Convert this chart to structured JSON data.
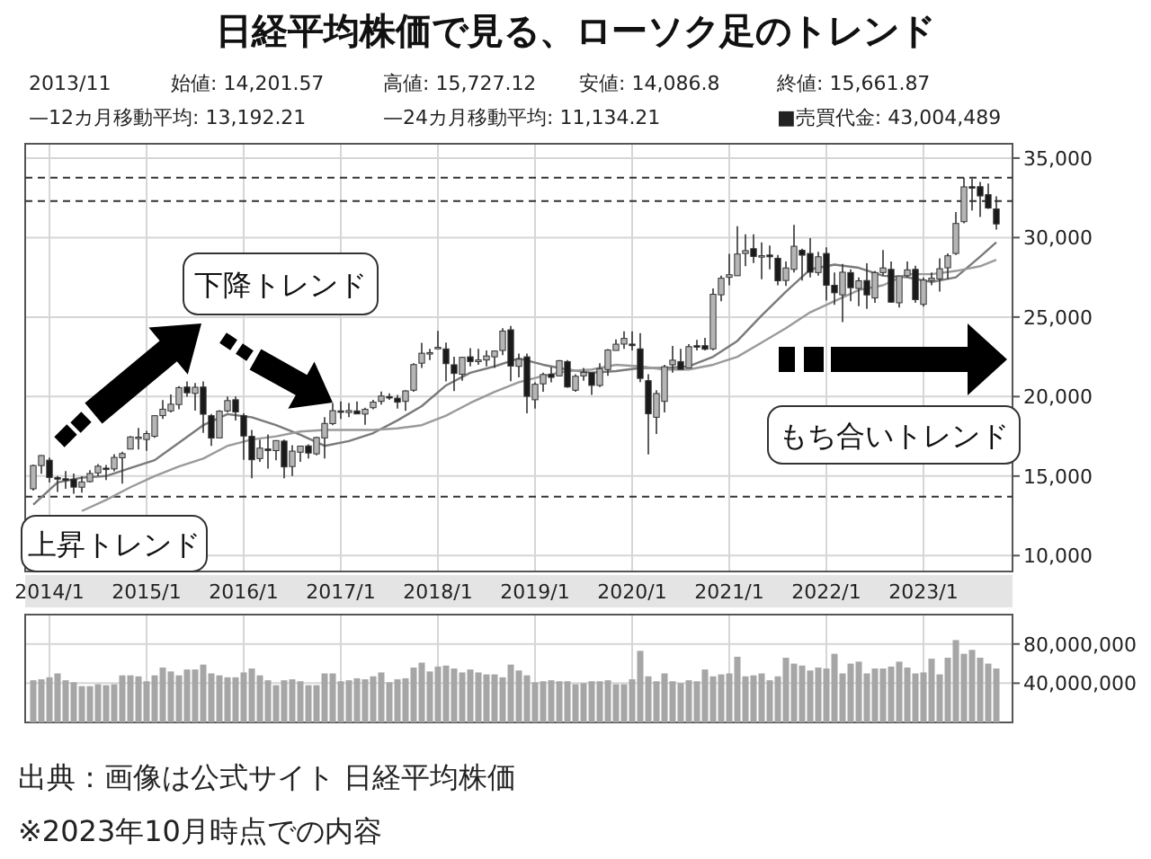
{
  "chart_data": [
    {
      "type": "candlestick",
      "title": "日経平均株価で見る、ローソク足のトレンド",
      "annotations": [
        "2013/11",
        "始値: 14,201.57",
        "高値: 15,727.12",
        "安値: 14,086.8",
        "終値: 15,661.87",
        "—12カ月移動平均: 13,192.21",
        "—24カ月移動平均: 11,134.21",
        "■売買代金: 43,004,489",
        "下降トレンド",
        "上昇トレンド",
        "もち合いトレンド"
      ],
      "x": [
        "2013-11",
        "2013-12",
        "2014-01",
        "2014-02",
        "2014-03",
        "2014-04",
        "2014-05",
        "2014-06",
        "2014-07",
        "2014-08",
        "2014-09",
        "2014-10",
        "2014-11",
        "2014-12",
        "2015-01",
        "2015-02",
        "2015-03",
        "2015-04",
        "2015-05",
        "2015-06",
        "2015-07",
        "2015-08",
        "2015-09",
        "2015-10",
        "2015-11",
        "2015-12",
        "2016-01",
        "2016-02",
        "2016-03",
        "2016-04",
        "2016-05",
        "2016-06",
        "2016-07",
        "2016-08",
        "2016-09",
        "2016-10",
        "2016-11",
        "2016-12",
        "2017-01",
        "2017-02",
        "2017-03",
        "2017-04",
        "2017-05",
        "2017-06",
        "2017-07",
        "2017-08",
        "2017-09",
        "2017-10",
        "2017-11",
        "2017-12",
        "2018-01",
        "2018-02",
        "2018-03",
        "2018-04",
        "2018-05",
        "2018-06",
        "2018-07",
        "2018-08",
        "2018-09",
        "2018-10",
        "2018-11",
        "2018-12",
        "2019-01",
        "2019-02",
        "2019-03",
        "2019-04",
        "2019-05",
        "2019-06",
        "2019-07",
        "2019-08",
        "2019-09",
        "2019-10",
        "2019-11",
        "2019-12",
        "2020-01",
        "2020-02",
        "2020-03",
        "2020-04",
        "2020-05",
        "2020-06",
        "2020-07",
        "2020-08",
        "2020-09",
        "2020-10",
        "2020-11",
        "2020-12",
        "2021-01",
        "2021-02",
        "2021-03",
        "2021-04",
        "2021-05",
        "2021-06",
        "2021-07",
        "2021-08",
        "2021-09",
        "2021-10",
        "2021-11",
        "2021-12",
        "2022-01",
        "2022-02",
        "2022-03",
        "2022-04",
        "2022-05",
        "2022-06",
        "2022-07",
        "2022-08",
        "2022-09",
        "2022-10",
        "2022-11",
        "2022-12",
        "2023-01",
        "2023-02",
        "2023-03",
        "2023-04",
        "2023-05",
        "2023-06",
        "2023-07",
        "2023-08",
        "2023-09",
        "2023-10"
      ],
      "ohlc": [
        [
          14201.57,
          15727.12,
          14086.8,
          15661.87
        ],
        [
          15660,
          16320,
          15150,
          16291
        ],
        [
          16000,
          16164,
          14600,
          14914
        ],
        [
          14900,
          15000,
          13995,
          14841
        ],
        [
          14830,
          15312,
          14203,
          14827
        ],
        [
          14800,
          15164,
          13885,
          14304
        ],
        [
          14300,
          14993,
          13964,
          14632
        ],
        [
          14650,
          15376,
          14600,
          15162
        ],
        [
          15200,
          15759,
          15000,
          15621
        ],
        [
          15500,
          15700,
          14753,
          15425
        ],
        [
          15450,
          16375,
          15300,
          16173
        ],
        [
          16150,
          16533,
          14529,
          16414
        ],
        [
          16700,
          17520,
          16700,
          17459
        ],
        [
          17400,
          18030,
          16672,
          17450
        ],
        [
          17300,
          17850,
          16592,
          17674
        ],
        [
          17500,
          18800,
          17400,
          18797
        ],
        [
          18800,
          19778,
          18600,
          19206
        ],
        [
          19100,
          20133,
          19000,
          19520
        ],
        [
          19500,
          20655,
          19200,
          20563
        ],
        [
          20600,
          20952,
          19990,
          20235
        ],
        [
          20200,
          20850,
          19115,
          20585
        ],
        [
          20600,
          20946,
          17714,
          18890
        ],
        [
          18800,
          18900,
          16901,
          17388
        ],
        [
          17400,
          19150,
          17400,
          19083
        ],
        [
          19100,
          20012,
          19000,
          19747
        ],
        [
          19800,
          20000,
          18500,
          19033
        ],
        [
          18800,
          18951,
          16017,
          17518
        ],
        [
          17500,
          17905,
          14865,
          16026
        ],
        [
          16100,
          17291,
          15900,
          16758
        ],
        [
          16700,
          17613,
          15471,
          16666
        ],
        [
          16600,
          17251,
          16000,
          17234
        ],
        [
          17200,
          17300,
          14864,
          15575
        ],
        [
          15600,
          16938,
          15000,
          16569
        ],
        [
          16500,
          16900,
          15900,
          16887
        ],
        [
          16900,
          17000,
          16100,
          16449
        ],
        [
          16400,
          17480,
          16300,
          17425
        ],
        [
          17400,
          18700,
          16111,
          18308
        ],
        [
          18300,
          19592,
          18200,
          19114
        ],
        [
          19100,
          19700,
          18600,
          19041
        ],
        [
          19000,
          19600,
          18700,
          19119
        ],
        [
          19100,
          19700,
          18900,
          18909
        ],
        [
          18900,
          19300,
          18224,
          19197
        ],
        [
          19300,
          19800,
          19200,
          19651
        ],
        [
          19700,
          20318,
          19500,
          20033
        ],
        [
          20000,
          20200,
          19800,
          19925
        ],
        [
          19900,
          20100,
          19240,
          19646
        ],
        [
          19700,
          20400,
          19100,
          20356
        ],
        [
          20400,
          22100,
          20300,
          22012
        ],
        [
          22100,
          23382,
          21800,
          22725
        ],
        [
          22700,
          23000,
          22300,
          22765
        ],
        [
          23000,
          24129,
          23000,
          23098
        ],
        [
          23000,
          23400,
          20951,
          22068
        ],
        [
          22000,
          22500,
          20347,
          21454
        ],
        [
          21400,
          22500,
          21000,
          22468
        ],
        [
          22500,
          23050,
          21900,
          22202
        ],
        [
          22200,
          23000,
          22000,
          22305
        ],
        [
          22300,
          22900,
          21900,
          22554
        ],
        [
          22500,
          22900,
          21800,
          22865
        ],
        [
          22900,
          24300,
          22600,
          24120
        ],
        [
          24200,
          24448,
          20971,
          21920
        ],
        [
          21900,
          22700,
          21200,
          22351
        ],
        [
          22500,
          22700,
          18948,
          20015
        ],
        [
          19800,
          20900,
          19241,
          20773
        ],
        [
          20800,
          21500,
          20300,
          21385
        ],
        [
          21400,
          21860,
          20900,
          21206
        ],
        [
          21300,
          22300,
          21300,
          22259
        ],
        [
          22200,
          22300,
          20550,
          20601
        ],
        [
          20400,
          21400,
          20300,
          21276
        ],
        [
          21300,
          21800,
          21000,
          21521
        ],
        [
          21500,
          21500,
          20110,
          20704
        ],
        [
          20700,
          22100,
          20600,
          21756
        ],
        [
          21700,
          22990,
          21300,
          22927
        ],
        [
          22900,
          23600,
          22900,
          23294
        ],
        [
          23300,
          24100,
          23000,
          23656
        ],
        [
          23300,
          24100,
          22900,
          23205
        ],
        [
          23000,
          23995,
          20916,
          21143
        ],
        [
          21000,
          21400,
          16358,
          18917
        ],
        [
          18700,
          20400,
          17646,
          20193
        ],
        [
          19700,
          22000,
          19000,
          21878
        ],
        [
          22000,
          23178,
          21500,
          22288
        ],
        [
          22200,
          23000,
          21710,
          21710
        ],
        [
          21800,
          23300,
          21800,
          23140
        ],
        [
          23200,
          23560,
          22900,
          23185
        ],
        [
          23200,
          23700,
          22900,
          22977
        ],
        [
          23000,
          26800,
          22900,
          26433
        ],
        [
          26400,
          27602,
          26000,
          27444
        ],
        [
          27500,
          28979,
          27000,
          27663
        ],
        [
          27600,
          30714,
          27600,
          28966
        ],
        [
          29000,
          30200,
          28200,
          29179
        ],
        [
          29300,
          30200,
          28400,
          28812
        ],
        [
          28800,
          29700,
          27385,
          28860
        ],
        [
          28900,
          29500,
          28000,
          28791
        ],
        [
          28700,
          28900,
          27000,
          27283
        ],
        [
          27300,
          28500,
          26954,
          28089
        ],
        [
          28000,
          30795,
          27800,
          29452
        ],
        [
          29200,
          29300,
          27300,
          28892
        ],
        [
          29000,
          29960,
          27500,
          27821
        ],
        [
          27800,
          29100,
          27600,
          28791
        ],
        [
          29000,
          29388,
          26044,
          27001
        ],
        [
          27000,
          27800,
          25770,
          26526
        ],
        [
          26400,
          28338,
          24681,
          27821
        ],
        [
          27800,
          28000,
          26000,
          26847
        ],
        [
          26800,
          27500,
          25688,
          27279
        ],
        [
          27300,
          28389,
          25520,
          26393
        ],
        [
          26200,
          27900,
          25900,
          27801
        ],
        [
          27800,
          29222,
          27600,
          28091
        ],
        [
          28000,
          28500,
          25900,
          25937
        ],
        [
          25900,
          27600,
          25600,
          27587
        ],
        [
          27600,
          28500,
          27500,
          27968
        ],
        [
          28000,
          28226,
          25900,
          26094
        ],
        [
          25800,
          27500,
          25661,
          27327
        ],
        [
          27300,
          27800,
          27000,
          27445
        ],
        [
          27400,
          28700,
          26600,
          28041
        ],
        [
          28100,
          29000,
          27400,
          28856
        ],
        [
          29000,
          31600,
          28900,
          30887
        ],
        [
          31000,
          33772,
          30900,
          33189
        ],
        [
          33200,
          33700,
          31700,
          33172
        ],
        [
          33200,
          33500,
          31300,
          32619
        ],
        [
          32700,
          33400,
          31800,
          31857
        ],
        [
          31800,
          32600,
          30500,
          30858
        ]
      ],
      "colors": [
        "#b5b5b5",
        "#b5b5b5",
        "#1a1a1a",
        "#1a1a1a",
        "#1a1a1a",
        "#1a1a1a",
        "#b5b5b5",
        "#b5b5b5",
        "#b5b5b5",
        "#1a1a1a",
        "#b5b5b5",
        "#b5b5b5",
        "#b5b5b5",
        "#b5b5b5",
        "#b5b5b5",
        "#b5b5b5",
        "#b5b5b5",
        "#b5b5b5",
        "#b5b5b5",
        "#1a1a1a",
        "#b5b5b5",
        "#1a1a1a",
        "#1a1a1a",
        "#b5b5b5",
        "#b5b5b5",
        "#1a1a1a",
        "#1a1a1a",
        "#1a1a1a",
        "#b5b5b5",
        "#1a1a1a",
        "#b5b5b5",
        "#1a1a1a",
        "#b5b5b5",
        "#b5b5b5",
        "#1a1a1a",
        "#b5b5b5",
        "#b5b5b5",
        "#b5b5b5",
        "#1a1a1a",
        "#b5b5b5",
        "#1a1a1a",
        "#b5b5b5",
        "#b5b5b5",
        "#b5b5b5",
        "#1a1a1a",
        "#1a1a1a",
        "#b5b5b5",
        "#b5b5b5",
        "#b5b5b5",
        "#b5b5b5",
        "#b5b5b5",
        "#1a1a1a",
        "#1a1a1a",
        "#b5b5b5",
        "#1a1a1a",
        "#b5b5b5",
        "#b5b5b5",
        "#b5b5b5",
        "#b5b5b5",
        "#1a1a1a",
        "#b5b5b5",
        "#1a1a1a",
        "#b5b5b5",
        "#b5b5b5",
        "#1a1a1a",
        "#b5b5b5",
        "#1a1a1a",
        "#b5b5b5",
        "#b5b5b5",
        "#1a1a1a",
        "#b5b5b5",
        "#b5b5b5",
        "#b5b5b5",
        "#b5b5b5",
        "#1a1a1a",
        "#1a1a1a",
        "#1a1a1a",
        "#b5b5b5",
        "#b5b5b5",
        "#b5b5b5",
        "#1a1a1a",
        "#b5b5b5",
        "#1a1a1a",
        "#1a1a1a",
        "#b5b5b5",
        "#b5b5b5",
        "#b5b5b5",
        "#b5b5b5",
        "#b5b5b5",
        "#1a1a1a",
        "#b5b5b5",
        "#1a1a1a",
        "#1a1a1a",
        "#b5b5b5",
        "#b5b5b5",
        "#1a1a1a",
        "#1a1a1a",
        "#b5b5b5",
        "#1a1a1a",
        "#1a1a1a",
        "#b5b5b5",
        "#1a1a1a",
        "#b5b5b5",
        "#1a1a1a",
        "#b5b5b5",
        "#b5b5b5",
        "#1a1a1a",
        "#b5b5b5",
        "#b5b5b5",
        "#1a1a1a",
        "#b5b5b5",
        "#b5b5b5",
        "#b5b5b5",
        "#b5b5b5",
        "#b5b5b5",
        "#b5b5b5",
        "#1a1a1a",
        "#1a1a1a",
        "#1a1a1a",
        "#1a1a1a"
      ],
      "series": [
        {
          "type": "line",
          "color": "#7a7a7a",
          "x": [
            "2013-11",
            "2014-02",
            "2014-05",
            "2014-08",
            "2014-11",
            "2015-02",
            "2015-05",
            "2015-08",
            "2015-11",
            "2016-02",
            "2016-05",
            "2016-08",
            "2016-11",
            "2017-02",
            "2017-05",
            "2017-08",
            "2017-11",
            "2018-02",
            "2018-05",
            "2018-08",
            "2018-11",
            "2019-02",
            "2019-05",
            "2019-08",
            "2019-11",
            "2020-02",
            "2020-05",
            "2020-08",
            "2020-11",
            "2021-02",
            "2021-05",
            "2021-08",
            "2021-11",
            "2022-02",
            "2022-05",
            "2022-08",
            "2022-11",
            "2023-02",
            "2023-05",
            "2023-08",
            "2023-10"
          ],
          "values": [
            13200,
            14600,
            14900,
            15000,
            15500,
            16000,
            17100,
            18200,
            18900,
            18700,
            18200,
            17600,
            16900,
            17200,
            17700,
            18500,
            19400,
            20700,
            21500,
            21900,
            22400,
            22000,
            21700,
            21500,
            21600,
            21800,
            21800,
            21900,
            22500,
            23500,
            25100,
            26600,
            28000,
            28300,
            28100,
            27600,
            27500,
            27200,
            27500,
            28800,
            29700
          ]
        },
        {
          "type": "line",
          "color": "#9a9a9a",
          "x": [
            "2014-05",
            "2014-08",
            "2014-11",
            "2015-02",
            "2015-05",
            "2015-08",
            "2015-11",
            "2016-02",
            "2016-05",
            "2016-08",
            "2016-11",
            "2017-02",
            "2017-05",
            "2017-08",
            "2017-11",
            "2018-02",
            "2018-05",
            "2018-08",
            "2018-11",
            "2019-02",
            "2019-05",
            "2019-08",
            "2019-11",
            "2020-02",
            "2020-05",
            "2020-08",
            "2020-11",
            "2021-02",
            "2021-05",
            "2021-08",
            "2021-11",
            "2022-02",
            "2022-05",
            "2022-08",
            "2022-11",
            "2023-02",
            "2023-05",
            "2023-08",
            "2023-10"
          ],
          "values": [
            12800,
            13500,
            14300,
            15000,
            15600,
            16100,
            16900,
            17300,
            17500,
            17800,
            17900,
            17900,
            17900,
            18000,
            18200,
            18800,
            19600,
            20300,
            20900,
            21300,
            21600,
            21700,
            22000,
            21900,
            21700,
            21700,
            22000,
            22500,
            23400,
            24300,
            25300,
            26000,
            26700,
            27000,
            27700,
            27700,
            27900,
            28200,
            28600
          ]
        }
      ],
      "xlim": [
        "2013-10",
        "2023-12"
      ],
      "ylim": [
        9000,
        35900
      ],
      "xticks": [
        {
          "value": "2014-01",
          "label": "2014/1"
        },
        {
          "value": "2015-01",
          "label": "2015/1"
        },
        {
          "value": "2016-01",
          "label": "2016/1"
        },
        {
          "value": "2017-01",
          "label": "2017/1"
        },
        {
          "value": "2018-01",
          "label": "2018/1"
        },
        {
          "value": "2019-01",
          "label": "2019/1"
        },
        {
          "value": "2020-01",
          "label": "2020/1"
        },
        {
          "value": "2021-01",
          "label": "2021/1"
        },
        {
          "value": "2022-01",
          "label": "2022/1"
        },
        {
          "value": "2023-01",
          "label": "2023/1"
        }
      ],
      "yticks": [
        {
          "value": 10000,
          "label": "10,000"
        },
        {
          "value": 15000,
          "label": "15,000"
        },
        {
          "value": 20000,
          "label": "20,000"
        },
        {
          "value": 25000,
          "label": "25,000"
        },
        {
          "value": 30000,
          "label": "30,000"
        },
        {
          "value": 35000,
          "label": "35,000"
        }
      ],
      "ref_lines": [
        {
          "axis": "y",
          "value": 33772,
          "color": "#333333",
          "line_style": "dashed"
        },
        {
          "axis": "y",
          "value": 32300,
          "color": "#333333",
          "line_style": "dashed"
        },
        {
          "axis": "y",
          "value": 13700,
          "color": "#333333",
          "line_style": "dashed"
        }
      ],
      "grid": true
    },
    {
      "type": "bar",
      "color": "#a6a6a6",
      "annotations": [
        "出典：画像は公式サイト 日経平均株価",
        "※2023年10月時点での内容"
      ],
      "x": [
        "2013-11",
        "2013-12",
        "2014-01",
        "2014-02",
        "2014-03",
        "2014-04",
        "2014-05",
        "2014-06",
        "2014-07",
        "2014-08",
        "2014-09",
        "2014-10",
        "2014-11",
        "2014-12",
        "2015-01",
        "2015-02",
        "2015-03",
        "2015-04",
        "2015-05",
        "2015-06",
        "2015-07",
        "2015-08",
        "2015-09",
        "2015-10",
        "2015-11",
        "2015-12",
        "2016-01",
        "2016-02",
        "2016-03",
        "2016-04",
        "2016-05",
        "2016-06",
        "2016-07",
        "2016-08",
        "2016-09",
        "2016-10",
        "2016-11",
        "2016-12",
        "2017-01",
        "2017-02",
        "2017-03",
        "2017-04",
        "2017-05",
        "2017-06",
        "2017-07",
        "2017-08",
        "2017-09",
        "2017-10",
        "2017-11",
        "2017-12",
        "2018-01",
        "2018-02",
        "2018-03",
        "2018-04",
        "2018-05",
        "2018-06",
        "2018-07",
        "2018-08",
        "2018-09",
        "2018-10",
        "2018-11",
        "2018-12",
        "2019-01",
        "2019-02",
        "2019-03",
        "2019-04",
        "2019-05",
        "2019-06",
        "2019-07",
        "2019-08",
        "2019-09",
        "2019-10",
        "2019-11",
        "2019-12",
        "2020-01",
        "2020-02",
        "2020-03",
        "2020-04",
        "2020-05",
        "2020-06",
        "2020-07",
        "2020-08",
        "2020-09",
        "2020-10",
        "2020-11",
        "2020-12",
        "2021-01",
        "2021-02",
        "2021-03",
        "2021-04",
        "2021-05",
        "2021-06",
        "2021-07",
        "2021-08",
        "2021-09",
        "2021-10",
        "2021-11",
        "2021-12",
        "2022-01",
        "2022-02",
        "2022-03",
        "2022-04",
        "2022-05",
        "2022-06",
        "2022-07",
        "2022-08",
        "2022-09",
        "2022-10",
        "2022-11",
        "2022-12",
        "2023-01",
        "2023-02",
        "2023-03",
        "2023-04",
        "2023-05",
        "2023-06",
        "2023-07",
        "2023-08",
        "2023-09",
        "2023-10"
      ],
      "values": [
        43000000,
        44000000,
        46000000,
        50000000,
        43000000,
        41000000,
        37000000,
        37000000,
        39000000,
        38000000,
        39000000,
        48000000,
        48000000,
        47000000,
        42000000,
        48000000,
        56000000,
        52000000,
        48000000,
        54000000,
        54000000,
        59000000,
        50000000,
        48000000,
        46000000,
        46000000,
        51000000,
        55000000,
        48000000,
        43000000,
        38000000,
        43000000,
        44000000,
        42000000,
        38000000,
        38000000,
        50000000,
        50000000,
        42000000,
        43000000,
        45000000,
        44000000,
        47000000,
        51000000,
        41000000,
        44000000,
        45000000,
        56000000,
        61000000,
        52000000,
        57000000,
        58000000,
        55000000,
        51000000,
        54000000,
        51000000,
        49000000,
        49000000,
        46000000,
        59000000,
        53000000,
        48000000,
        41000000,
        42000000,
        43000000,
        42000000,
        42000000,
        39000000,
        40000000,
        42000000,
        42000000,
        43000000,
        39000000,
        39000000,
        44000000,
        73000000,
        47000000,
        42000000,
        50000000,
        42000000,
        40000000,
        43000000,
        42000000,
        54000000,
        47000000,
        49000000,
        50000000,
        67000000,
        47000000,
        48000000,
        50000000,
        43000000,
        47000000,
        66000000,
        60000000,
        58000000,
        53000000,
        56000000,
        55000000,
        70000000,
        50000000,
        60000000,
        62000000,
        50000000,
        55000000,
        55000000,
        57000000,
        62000000,
        56000000,
        50000000,
        51000000,
        65000000,
        49000000,
        66000000,
        84000000,
        70000000,
        74000000,
        66000000,
        60000000,
        55000000
      ],
      "xlim": [
        "2013-10",
        "2023-12"
      ],
      "ylim": [
        0,
        110000000
      ],
      "xticks": [
        {
          "value": "2014-01",
          "label": null
        },
        {
          "value": "2015-01",
          "label": null
        },
        {
          "value": "2016-01",
          "label": null
        },
        {
          "value": "2017-01",
          "label": null
        },
        {
          "value": "2018-01",
          "label": null
        },
        {
          "value": "2019-01",
          "label": null
        },
        {
          "value": "2020-01",
          "label": null
        },
        {
          "value": "2021-01",
          "label": null
        },
        {
          "value": "2022-01",
          "label": null
        },
        {
          "value": "2023-01",
          "label": null
        }
      ],
      "yticks": [
        {
          "value": 40000000,
          "label": "40,000,000"
        },
        {
          "value": 80000000,
          "label": "80,000,000"
        }
      ],
      "grid": true,
      "tick_labels": "y"
    }
  ]
}
